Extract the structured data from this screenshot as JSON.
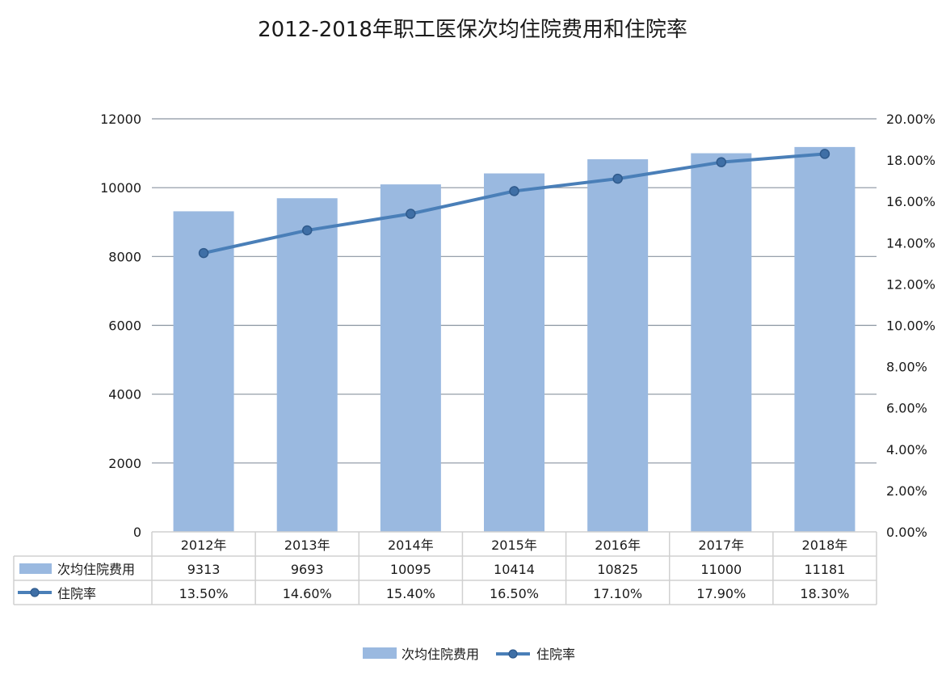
{
  "chart_data": {
    "type": "bar",
    "title": "2012-2018年职工医保次均住院费用和住院率",
    "categories": [
      "2012年",
      "2013年",
      "2014年",
      "2015年",
      "2016年",
      "2017年",
      "2018年"
    ],
    "series": [
      {
        "name": "次均住院费用",
        "type": "bar",
        "axis": "left",
        "color": "#9ab9e0",
        "values": [
          9313,
          9693,
          10095,
          10414,
          10825,
          11000,
          11181
        ],
        "labels": [
          "9313",
          "9693",
          "10095",
          "10414",
          "10825",
          "11000",
          "11181"
        ]
      },
      {
        "name": "住院率",
        "type": "line",
        "axis": "right",
        "color": "#4a7fb8",
        "values": [
          13.5,
          14.6,
          15.4,
          16.5,
          17.1,
          17.9,
          18.3
        ],
        "labels": [
          "13.50%",
          "14.60%",
          "15.40%",
          "16.50%",
          "17.10%",
          "17.90%",
          "18.30%"
        ]
      }
    ],
    "y_left": {
      "lim": [
        0,
        12000
      ],
      "ticks": [
        "0",
        "2000",
        "4000",
        "6000",
        "8000",
        "10000",
        "12000"
      ]
    },
    "y_right": {
      "lim": [
        0,
        20
      ],
      "ticks": [
        "0.00%",
        "2.00%",
        "4.00%",
        "6.00%",
        "8.00%",
        "10.00%",
        "12.00%",
        "14.00%",
        "16.00%",
        "18.00%",
        "20.00%"
      ]
    },
    "grid": true,
    "data_table": true,
    "legend_position": "bottom"
  }
}
